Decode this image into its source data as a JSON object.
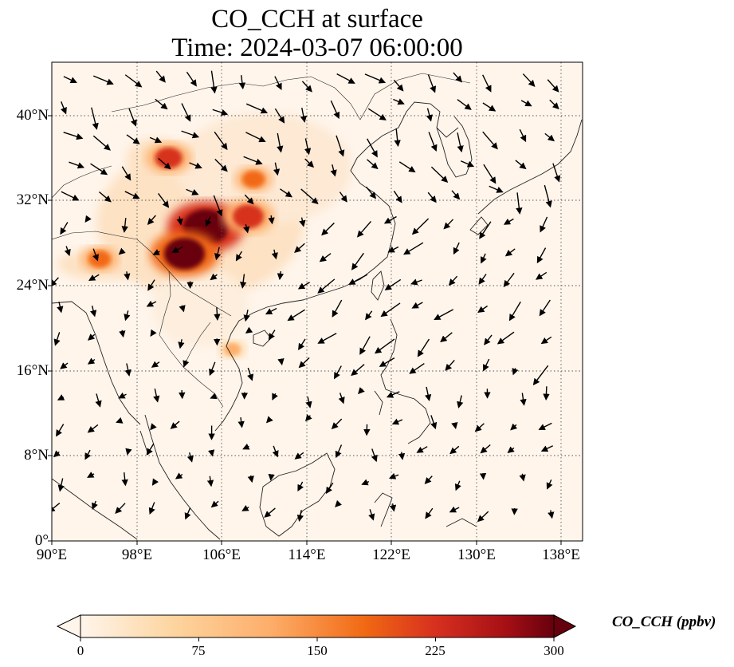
{
  "title": "CO_CCH at surface",
  "subtitle": "Time: 2024-03-07 06:00:00",
  "map": {
    "lon_range": [
      90,
      140
    ],
    "lat_range": [
      0,
      45
    ],
    "lon_ticks": [
      "90°E",
      "98°E",
      "106°E",
      "114°E",
      "122°E",
      "130°E",
      "138°E"
    ],
    "lat_ticks": [
      "0°",
      "8°N",
      "16°N",
      "24°N",
      "32°N",
      "40°N"
    ],
    "gridlines": "dotted",
    "background_color": "#fff5eb"
  },
  "colorbar": {
    "label": "CO_CCH (ppbv)",
    "ticks": [
      "0",
      "75",
      "150",
      "225",
      "300"
    ],
    "range": [
      0,
      300
    ],
    "extend": "both",
    "colormap": "OrRd-like",
    "stops": [
      "#fff5eb",
      "#fdd49e",
      "#fdae6b",
      "#f16913",
      "#d7301f",
      "#a50f15",
      "#67000d"
    ]
  },
  "chart_data": {
    "type": "heatmap",
    "title": "CO_CCH at surface",
    "subtitle": "Time: 2024-03-07 06:00:00",
    "units": "ppbv",
    "value_range": [
      0,
      300
    ],
    "hotspots": [
      {
        "lon": 104.5,
        "lat": 29.5,
        "value": 300
      },
      {
        "lon": 102.5,
        "lat": 27.0,
        "value": 260
      },
      {
        "lon": 108.5,
        "lat": 30.5,
        "value": 180
      },
      {
        "lon": 101.0,
        "lat": 36.0,
        "value": 150
      },
      {
        "lon": 94.5,
        "lat": 26.5,
        "value": 110
      },
      {
        "lon": 109.0,
        "lat": 34.0,
        "value": 110
      },
      {
        "lon": 107.0,
        "lat": 18.0,
        "value": 60
      }
    ],
    "wind_vectors": "quiver arrows overlaid (approximate)"
  }
}
